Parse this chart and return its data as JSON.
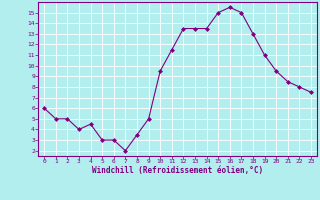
{
  "x": [
    0,
    1,
    2,
    3,
    4,
    5,
    6,
    7,
    8,
    9,
    10,
    11,
    12,
    13,
    14,
    15,
    16,
    17,
    18,
    19,
    20,
    21,
    22,
    23
  ],
  "y": [
    6.0,
    5.0,
    5.0,
    4.0,
    4.5,
    3.0,
    3.0,
    2.0,
    3.5,
    5.0,
    9.5,
    11.5,
    13.5,
    13.5,
    13.5,
    15.0,
    15.5,
    15.0,
    13.0,
    11.0,
    9.5,
    8.5,
    8.0,
    7.5
  ],
  "line_color": "#800080",
  "marker": "D",
  "marker_size": 2,
  "bg_color": "#b2eeee",
  "grid_color": "#c8e8e8",
  "xlabel": "Windchill (Refroidissement éolien,°C)",
  "xlabel_color": "#800080",
  "tick_color": "#800080",
  "spine_color": "#800080",
  "xlim": [
    -0.5,
    23.5
  ],
  "ylim": [
    1.5,
    16.0
  ],
  "yticks": [
    2,
    3,
    4,
    5,
    6,
    7,
    8,
    9,
    10,
    11,
    12,
    13,
    14,
    15
  ],
  "xticks": [
    0,
    1,
    2,
    3,
    4,
    5,
    6,
    7,
    8,
    9,
    10,
    11,
    12,
    13,
    14,
    15,
    16,
    17,
    18,
    19,
    20,
    21,
    22,
    23
  ]
}
